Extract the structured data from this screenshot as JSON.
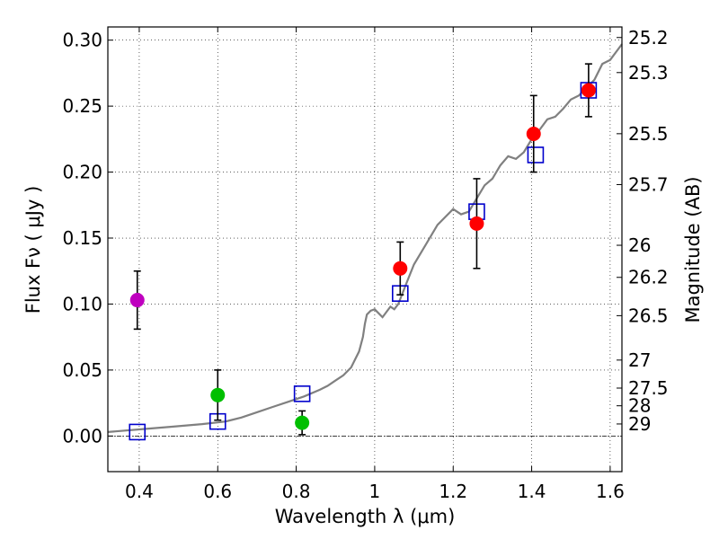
{
  "chart_data": {
    "type": "scatter",
    "xlabel": "Wavelength  λ (μm)",
    "ylabel": "Flux  Fν  ( μJy )",
    "y2label": "Magnitude (AB)",
    "xlim": [
      0.32,
      1.63
    ],
    "ylim": [
      -0.027,
      0.31
    ],
    "grid": true,
    "x_ticks": [
      0.4,
      0.6,
      0.8,
      1.0,
      1.2,
      1.4,
      1.6
    ],
    "x_tick_labels": [
      "0.4",
      "0.6",
      "0.8",
      "1",
      "1.2",
      "1.4",
      "1.6"
    ],
    "y_ticks": [
      0.0,
      0.05,
      0.1,
      0.15,
      0.2,
      0.25,
      0.3
    ],
    "y_tick_labels": [
      "0.00",
      "0.05",
      "0.10",
      "0.15",
      "0.20",
      "0.25",
      "0.30"
    ],
    "mag_ticks": [
      "25.2",
      "25.3",
      "25.5",
      "25.7",
      "26",
      "26.2",
      "26.5",
      "27",
      "27.5",
      "28",
      "29"
    ],
    "colors": {
      "spectrum": "#808080",
      "model_box": "#0000cc",
      "magenta": "#bf00bf",
      "green": "#00bf00",
      "red": "#ff0000",
      "errorbar": "#000000"
    },
    "series": [
      {
        "name": "model spectrum",
        "kind": "line",
        "x": [
          0.32,
          0.4,
          0.48,
          0.56,
          0.62,
          0.66,
          0.7,
          0.74,
          0.78,
          0.82,
          0.86,
          0.88,
          0.9,
          0.92,
          0.94,
          0.95,
          0.96,
          0.97,
          0.975,
          0.98,
          0.99,
          1.0,
          1.02,
          1.04,
          1.05,
          1.06,
          1.08,
          1.1,
          1.13,
          1.16,
          1.18,
          1.2,
          1.22,
          1.24,
          1.26,
          1.28,
          1.3,
          1.32,
          1.34,
          1.36,
          1.38,
          1.4,
          1.42,
          1.44,
          1.46,
          1.48,
          1.5,
          1.52,
          1.54,
          1.56,
          1.58,
          1.6,
          1.63
        ],
        "y": [
          0.003,
          0.005,
          0.007,
          0.009,
          0.011,
          0.014,
          0.018,
          0.022,
          0.026,
          0.03,
          0.035,
          0.038,
          0.042,
          0.046,
          0.052,
          0.058,
          0.064,
          0.075,
          0.085,
          0.092,
          0.095,
          0.096,
          0.09,
          0.098,
          0.096,
          0.1,
          0.115,
          0.13,
          0.145,
          0.16,
          0.166,
          0.172,
          0.168,
          0.17,
          0.18,
          0.19,
          0.195,
          0.205,
          0.212,
          0.21,
          0.215,
          0.225,
          0.232,
          0.24,
          0.242,
          0.248,
          0.255,
          0.258,
          0.264,
          0.27,
          0.282,
          0.285,
          0.297
        ]
      },
      {
        "name": "model photometry",
        "kind": "box",
        "x": [
          0.395,
          0.6,
          0.815,
          1.065,
          1.26,
          1.41,
          1.545
        ],
        "y": [
          0.003,
          0.011,
          0.032,
          0.108,
          0.17,
          0.213,
          0.262
        ]
      },
      {
        "name": "magenta point",
        "kind": "point",
        "color": "magenta",
        "x": [
          0.395
        ],
        "y": [
          0.103
        ],
        "err": [
          0.022
        ]
      },
      {
        "name": "green points",
        "kind": "point",
        "color": "green",
        "x": [
          0.6,
          0.815
        ],
        "y": [
          0.031,
          0.01
        ],
        "err": [
          0.019,
          0.009
        ]
      },
      {
        "name": "red points",
        "kind": "point",
        "color": "red",
        "x": [
          1.065,
          1.26,
          1.405,
          1.545
        ],
        "y": [
          0.127,
          0.161,
          0.229,
          0.262
        ],
        "err": [
          0.02,
          0.034,
          0.029,
          0.02
        ]
      }
    ]
  }
}
